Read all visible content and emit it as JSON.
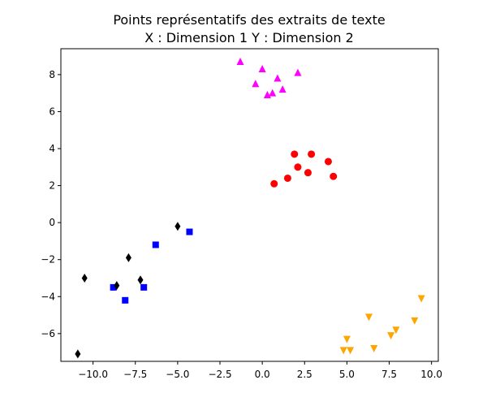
{
  "chart_data": {
    "type": "scatter",
    "title": [
      "Points représentatifs des extraits de texte",
      "X : Dimension 1     Y : Dimension 2"
    ],
    "xlabel": "",
    "ylabel": "",
    "xlim": [
      -11.9,
      10.4
    ],
    "ylim": [
      -7.5,
      9.4
    ],
    "xticks": [
      -10.0,
      -7.5,
      -5.0,
      -2.5,
      0.0,
      2.5,
      5.0,
      7.5,
      10.0
    ],
    "xtick_labels": [
      "−10.0",
      "−7.5",
      "−5.0",
      "−2.5",
      "0.0",
      "2.5",
      "5.0",
      "7.5",
      "10.0"
    ],
    "yticks": [
      -6,
      -4,
      -2,
      0,
      2,
      4,
      6,
      8
    ],
    "ytick_labels": [
      "−6",
      "−4",
      "−2",
      "0",
      "2",
      "4",
      "6",
      "8"
    ],
    "grid": false,
    "legend": false,
    "series": [
      {
        "color": "#ff00ff",
        "marker": "triangle-up",
        "points": [
          [
            -1.3,
            8.7
          ],
          [
            0.0,
            8.3
          ],
          [
            -0.4,
            7.5
          ],
          [
            0.9,
            7.8
          ],
          [
            2.1,
            8.1
          ],
          [
            0.3,
            6.9
          ],
          [
            0.6,
            7.0
          ],
          [
            1.2,
            7.2
          ]
        ]
      },
      {
        "color": "#ff0000",
        "marker": "circle",
        "points": [
          [
            1.9,
            3.7
          ],
          [
            2.9,
            3.7
          ],
          [
            3.9,
            3.3
          ],
          [
            2.1,
            3.0
          ],
          [
            2.7,
            2.7
          ],
          [
            1.5,
            2.4
          ],
          [
            0.7,
            2.1
          ],
          [
            4.2,
            2.5
          ]
        ]
      },
      {
        "color": "#0000ff",
        "marker": "square",
        "points": [
          [
            -6.3,
            -1.2
          ],
          [
            -4.3,
            -0.5
          ],
          [
            -8.8,
            -3.5
          ],
          [
            -7.0,
            -3.5
          ],
          [
            -8.1,
            -4.2
          ]
        ]
      },
      {
        "color": "#000000",
        "marker": "thin-diamond",
        "points": [
          [
            -5.0,
            -0.2
          ],
          [
            -7.9,
            -1.9
          ],
          [
            -10.5,
            -3.0
          ],
          [
            -8.6,
            -3.4
          ],
          [
            -7.2,
            -3.1
          ],
          [
            -10.9,
            -7.1
          ]
        ]
      },
      {
        "color": "#ffa500",
        "marker": "triangle-down",
        "points": [
          [
            9.4,
            -4.1
          ],
          [
            6.3,
            -5.1
          ],
          [
            9.0,
            -5.3
          ],
          [
            7.9,
            -5.8
          ],
          [
            7.6,
            -6.1
          ],
          [
            5.0,
            -6.3
          ],
          [
            6.6,
            -6.8
          ],
          [
            4.8,
            -6.9
          ],
          [
            5.2,
            -6.9
          ]
        ]
      }
    ]
  }
}
